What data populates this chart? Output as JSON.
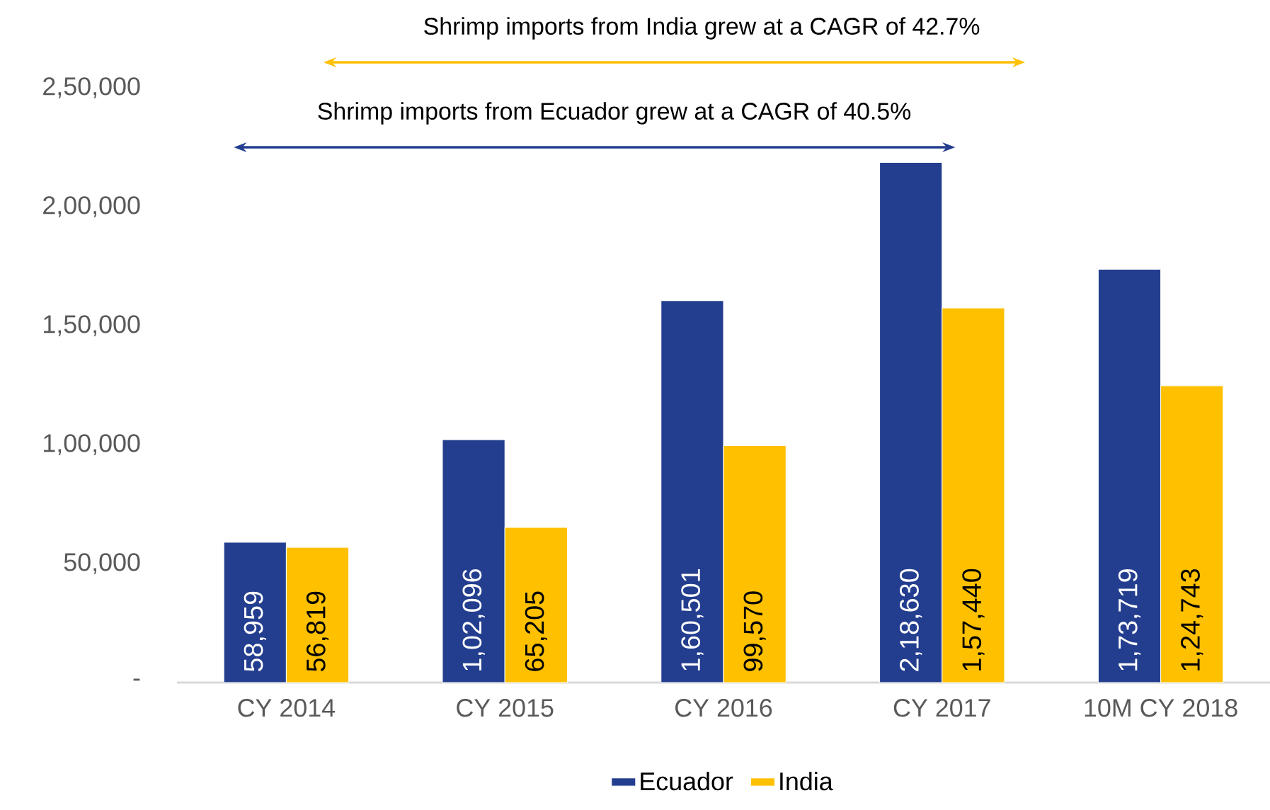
{
  "chart_data": {
    "type": "bar",
    "categories": [
      "CY 2014",
      "CY 2015",
      "CY 2016",
      "CY 2017",
      "10M CY 2018"
    ],
    "series": [
      {
        "name": "Ecuador",
        "color": "#233e8f",
        "values": [
          58959,
          102096,
          160501,
          218630,
          173719
        ],
        "value_labels": [
          "58,959",
          "1,02,096",
          "1,60,501",
          "2,18,630",
          "1,73,719"
        ]
      },
      {
        "name": "India",
        "color": "#ffc000",
        "values": [
          56819,
          65205,
          99570,
          157440,
          124743
        ],
        "value_labels": [
          "56,819",
          "65,205",
          "99,570",
          "1,57,440",
          "1,24,743"
        ]
      }
    ],
    "ylim": [
      0,
      250000
    ],
    "yticks": [
      {
        "value": 0,
        "label": "-"
      },
      {
        "value": 50000,
        "label": "50,000"
      },
      {
        "value": 100000,
        "label": "1,00,000"
      },
      {
        "value": 150000,
        "label": "1,50,000"
      },
      {
        "value": 200000,
        "label": "2,00,000"
      },
      {
        "value": 250000,
        "label": "2,50,000"
      }
    ],
    "legend": "bottom",
    "grid": false,
    "annotations": [
      "Shrimp imports from India grew at a CAGR of 42.7%",
      "Shrimp imports from Ecuador grew at a CAGR of 40.5%"
    ]
  }
}
